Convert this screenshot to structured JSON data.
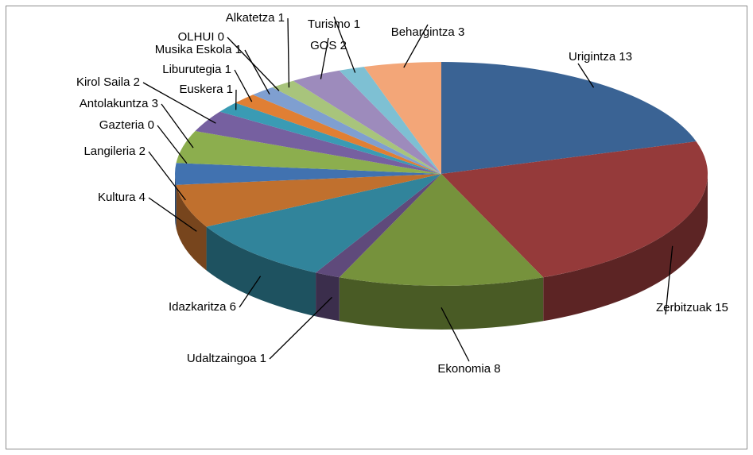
{
  "chart_data": {
    "type": "pie3d",
    "categories": [
      "Urigintza",
      "Zerbitzuak",
      "Ekonomia",
      "Udaltzaingoa",
      "Idazkaritza",
      "Kultura",
      "Langileria",
      "Gazteria",
      "Antolakuntza",
      "Kirol Saila",
      "Euskera",
      "Liburutegia",
      "Musika Eskola",
      "OLHUI",
      "Alkatetza",
      "GOS",
      "Turismo",
      "Behargintza"
    ],
    "values": [
      13,
      15,
      8,
      1,
      6,
      4,
      2,
      0,
      3,
      2,
      1,
      1,
      1,
      0,
      1,
      2,
      1,
      3
    ],
    "colors": [
      "#3a6394",
      "#953a3a",
      "#76923c",
      "#5f4a7b",
      "#31849b",
      "#c0702e",
      "#4172b0",
      "#b34b48",
      "#8cae4e",
      "#7660a0",
      "#3a9bb4",
      "#e07f34",
      "#7f9fd0",
      "#d08482",
      "#a8c47c",
      "#9d8bbc",
      "#7ec0d3",
      "#f3a678"
    ]
  }
}
